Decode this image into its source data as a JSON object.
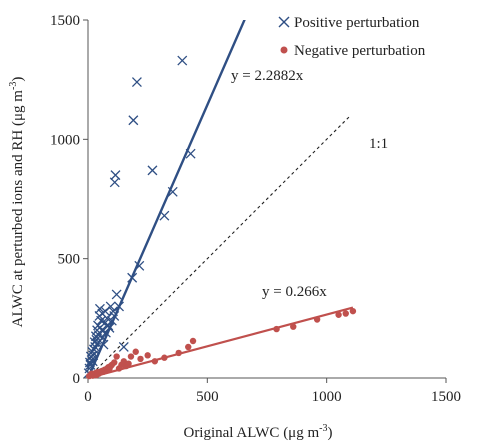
{
  "chart_data": {
    "type": "scatter",
    "xlabel_main": "Original ALWC (μg m",
    "xlabel_sup": "-3",
    "xlabel_end": ")",
    "ylabel_main": "ALWC at perturbed ions and RH (μg m",
    "ylabel_sup": "-3",
    "ylabel_end": ")",
    "xlim": [
      0,
      1500
    ],
    "ylim": [
      0,
      1500
    ],
    "x_ticks": [
      "0",
      "500",
      "1000",
      "1500"
    ],
    "y_ticks": [
      "0",
      "500",
      "1000",
      "1500"
    ],
    "grid": false,
    "legend_position": "top-right",
    "series": [
      {
        "name": "Positive perturbation",
        "marker": "x",
        "color": "#2f4f84",
        "fit_label": "y = 2.2882x",
        "slope": 2.2882,
        "points": [
          [
            3,
            20
          ],
          [
            6,
            40
          ],
          [
            8,
            65
          ],
          [
            10,
            55
          ],
          [
            12,
            90
          ],
          [
            15,
            75
          ],
          [
            18,
            110
          ],
          [
            20,
            70
          ],
          [
            22,
            95
          ],
          [
            25,
            120
          ],
          [
            28,
            150
          ],
          [
            30,
            130
          ],
          [
            33,
            175
          ],
          [
            35,
            160
          ],
          [
            38,
            200
          ],
          [
            40,
            145
          ],
          [
            42,
            220
          ],
          [
            45,
            180
          ],
          [
            48,
            260
          ],
          [
            50,
            290
          ],
          [
            55,
            240
          ],
          [
            58,
            200
          ],
          [
            60,
            270
          ],
          [
            62,
            170
          ],
          [
            65,
            140
          ],
          [
            70,
            230
          ],
          [
            72,
            280
          ],
          [
            75,
            190
          ],
          [
            80,
            250
          ],
          [
            85,
            220
          ],
          [
            90,
            210
          ],
          [
            95,
            300
          ],
          [
            100,
            240
          ],
          [
            105,
            280
          ],
          [
            110,
            260
          ],
          [
            112,
            820
          ],
          [
            115,
            850
          ],
          [
            120,
            350
          ],
          [
            130,
            300
          ],
          [
            150,
            130
          ],
          [
            185,
            420
          ],
          [
            190,
            1080
          ],
          [
            205,
            1240
          ],
          [
            215,
            470
          ],
          [
            270,
            870
          ],
          [
            320,
            680
          ],
          [
            355,
            780
          ],
          [
            395,
            1330
          ],
          [
            430,
            940
          ]
        ]
      },
      {
        "name": "Negative perturbation",
        "marker": "circle",
        "color": "#c0504d",
        "fit_label": "y = 0.266x",
        "slope": 0.266,
        "points": [
          [
            5,
            8
          ],
          [
            10,
            12
          ],
          [
            15,
            18
          ],
          [
            20,
            10
          ],
          [
            25,
            15
          ],
          [
            30,
            20
          ],
          [
            35,
            12
          ],
          [
            40,
            25
          ],
          [
            45,
            18
          ],
          [
            50,
            22
          ],
          [
            55,
            28
          ],
          [
            60,
            30
          ],
          [
            65,
            26
          ],
          [
            70,
            35
          ],
          [
            75,
            32
          ],
          [
            80,
            40
          ],
          [
            85,
            45
          ],
          [
            90,
            38
          ],
          [
            95,
            50
          ],
          [
            100,
            55
          ],
          [
            110,
            65
          ],
          [
            120,
            90
          ],
          [
            130,
            40
          ],
          [
            140,
            55
          ],
          [
            150,
            70
          ],
          [
            160,
            50
          ],
          [
            170,
            60
          ],
          [
            180,
            90
          ],
          [
            200,
            110
          ],
          [
            220,
            80
          ],
          [
            250,
            95
          ],
          [
            280,
            70
          ],
          [
            320,
            85
          ],
          [
            380,
            105
          ],
          [
            420,
            130
          ],
          [
            440,
            155
          ],
          [
            790,
            205
          ],
          [
            860,
            215
          ],
          [
            960,
            245
          ],
          [
            1050,
            265
          ],
          [
            1080,
            270
          ],
          [
            1110,
            280
          ]
        ]
      }
    ],
    "reference_line_label": "1:1"
  }
}
